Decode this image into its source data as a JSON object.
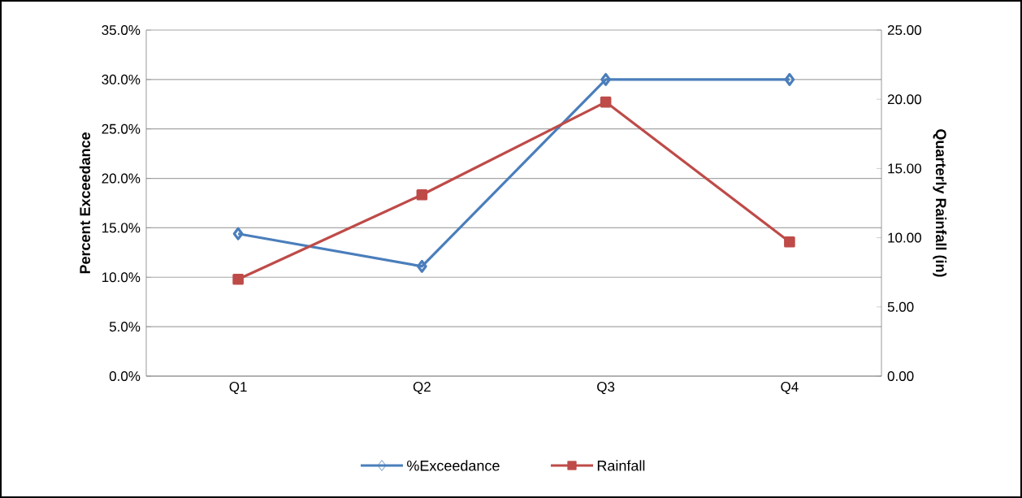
{
  "chart_data": {
    "type": "line",
    "categories": [
      "Q1",
      "Q2",
      "Q3",
      "Q4"
    ],
    "ylabel": "Percent Exceedance",
    "y2label": "Quarterly Rainfall (in)",
    "ylim": [
      0,
      35
    ],
    "yticks": [
      {
        "value": 0,
        "label": "0.0%"
      },
      {
        "value": 5,
        "label": "5.0%"
      },
      {
        "value": 10,
        "label": "10.0%"
      },
      {
        "value": 15,
        "label": "15.0%"
      },
      {
        "value": 20,
        "label": "20.0%"
      },
      {
        "value": 25,
        "label": "25.0%"
      },
      {
        "value": 30,
        "label": "30.0%"
      },
      {
        "value": 35,
        "label": "35.0%"
      }
    ],
    "y2lim": [
      0,
      25
    ],
    "y2ticks": [
      {
        "value": 0,
        "label": "0.00"
      },
      {
        "value": 5,
        "label": "5.00"
      },
      {
        "value": 10,
        "label": "10.00"
      },
      {
        "value": 15,
        "label": "15.00"
      },
      {
        "value": 20,
        "label": "20.00"
      },
      {
        "value": 25,
        "label": "25.00"
      }
    ],
    "grid": "y",
    "legend": "bottom",
    "series": [
      {
        "name": "%Exceedance",
        "color": "#4a7ebb",
        "marker": "diamond",
        "values": [
          14.4,
          11.1,
          30.0,
          30.0
        ]
      },
      {
        "name": "Rainfall",
        "color": "#be4b48",
        "marker": "square",
        "axis": "y2",
        "values": [
          7.0,
          13.1,
          19.8,
          9.7
        ]
      }
    ]
  }
}
